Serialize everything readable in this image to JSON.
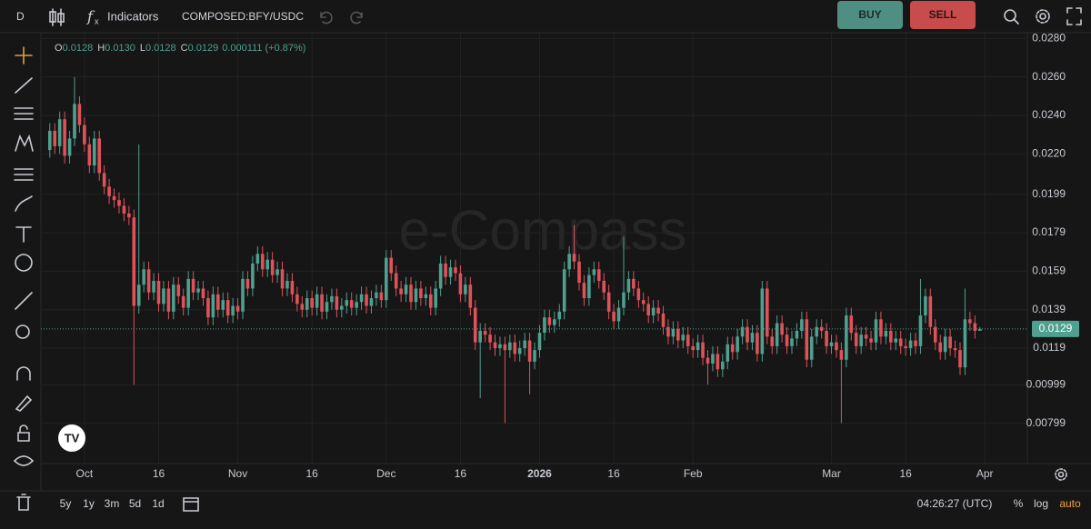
{
  "toolbar": {
    "interval": "D",
    "indicators": "Indicators",
    "symbol": "COMPOSED:BFY/USDC",
    "buy": "BUY",
    "sell": "SELL"
  },
  "watermark": "e-Compass",
  "footer": {
    "ranges": [
      "5y",
      "1y",
      "3m",
      "5d",
      "1d"
    ],
    "time": "04:26:27 (UTC)",
    "percent": "%",
    "log": "log",
    "auto": "auto"
  },
  "chart_data": {
    "type": "candlestick",
    "ohlc_header": [
      {
        "key": "O",
        "value": "0.0128"
      },
      {
        "key": "H",
        "value": "0.0130"
      },
      {
        "key": "L",
        "value": "0.0128"
      },
      {
        "key": "C",
        "value": "0.0129"
      }
    ],
    "change": "0.000111 (+0.87%)",
    "up_color": "#4ea08f",
    "down_color": "#e0525a",
    "last_price": 0.0129,
    "xlim": [
      -1.8,
      197.6
    ],
    "xticks": [
      {
        "value": 7,
        "label": "Oct"
      },
      {
        "value": 22,
        "label": "16"
      },
      {
        "value": 38,
        "label": "Nov"
      },
      {
        "value": 53,
        "label": "16"
      },
      {
        "value": 68,
        "label": "Dec"
      },
      {
        "value": 83,
        "label": "16"
      },
      {
        "value": 99,
        "label": "2026"
      },
      {
        "value": 114,
        "label": "16"
      },
      {
        "value": 130,
        "label": "Feb"
      },
      {
        "value": 158,
        "label": "Mar"
      },
      {
        "value": 173,
        "label": "16"
      },
      {
        "value": 189,
        "label": "Apr"
      }
    ],
    "ylim": [
      0.0059,
      0.0283
    ],
    "yticks": [
      {
        "value": 0.028,
        "label": "0.0280"
      },
      {
        "value": 0.026,
        "label": "0.0260"
      },
      {
        "value": 0.024,
        "label": "0.0240"
      },
      {
        "value": 0.022,
        "label": "0.0220"
      },
      0.0199,
      0.0179,
      0.0159,
      0.0139,
      0.0119,
      0.00999,
      0.00799
    ],
    "grid": true,
    "open": [
      0.0222,
      0.0232,
      0.0224,
      0.0238,
      0.0219,
      0.0228,
      0.0246,
      0.0235,
      0.0225,
      0.0214,
      0.0228,
      0.021,
      0.0203,
      0.0198,
      0.0196,
      0.0193,
      0.0189,
      0.0187,
      0.0141,
      0.0152,
      0.016,
      0.0148,
      0.0154,
      0.0142,
      0.015,
      0.0138,
      0.0152,
      0.0146,
      0.014,
      0.0155,
      0.0148,
      0.015,
      0.0145,
      0.0135,
      0.0147,
      0.0139,
      0.0144,
      0.0136,
      0.0141,
      0.0138,
      0.0155,
      0.015,
      0.0163,
      0.0168,
      0.016,
      0.0165,
      0.0157,
      0.016,
      0.015,
      0.0154,
      0.0147,
      0.0142,
      0.0139,
      0.0145,
      0.014,
      0.0147,
      0.0138,
      0.0143,
      0.0146,
      0.0139,
      0.0141,
      0.0144,
      0.014,
      0.0143,
      0.0147,
      0.0141,
      0.0145,
      0.0148,
      0.0144,
      0.0166,
      0.0158,
      0.015,
      0.0147,
      0.0152,
      0.0143,
      0.015,
      0.0145,
      0.0147,
      0.014,
      0.015,
      0.0163,
      0.0156,
      0.0161,
      0.0158,
      0.0147,
      0.0152,
      0.014,
      0.0122,
      0.0128,
      0.0126,
      0.0122,
      0.0119,
      0.0121,
      0.0118,
      0.0122,
      0.0116,
      0.0119,
      0.0123,
      0.0112,
      0.0118,
      0.0127,
      0.0135,
      0.0131,
      0.0134,
      0.0138,
      0.016,
      0.0168,
      0.0164,
      0.0153,
      0.0145,
      0.0157,
      0.016,
      0.0154,
      0.0148,
      0.0138,
      0.0133,
      0.014,
      0.0148,
      0.0155,
      0.015,
      0.0144,
      0.0142,
      0.0136,
      0.014,
      0.0137,
      0.013,
      0.0125,
      0.0129,
      0.0123,
      0.0126,
      0.012,
      0.0118,
      0.0122,
      0.0114,
      0.0111,
      0.0116,
      0.0108,
      0.0112,
      0.0121,
      0.0117,
      0.0125,
      0.013,
      0.0122,
      0.0127,
      0.0116,
      0.015,
      0.0125,
      0.012,
      0.0132,
      0.0126,
      0.012,
      0.0124,
      0.0128,
      0.0134,
      0.0113,
      0.0125,
      0.013,
      0.0128,
      0.012,
      0.0122,
      0.0118,
      0.0113,
      0.0136,
      0.0127,
      0.012,
      0.0126,
      0.0124,
      0.0122,
      0.0134,
      0.0125,
      0.0128,
      0.0122,
      0.0124,
      0.012,
      0.0119,
      0.0123,
      0.012,
      0.0136,
      0.0146,
      0.013,
      0.0122,
      0.0117,
      0.0125,
      0.0119,
      0.0118,
      0.0109,
      0.0134,
      0.0132,
      0.0128
    ],
    "high": [
      0.0236,
      0.0236,
      0.0242,
      0.0242,
      0.0232,
      0.026,
      0.025,
      0.0239,
      0.0229,
      0.0232,
      0.0232,
      0.0214,
      0.0207,
      0.0202,
      0.02,
      0.0197,
      0.0193,
      0.0191,
      0.0225,
      0.0164,
      0.0164,
      0.0158,
      0.0158,
      0.0154,
      0.0154,
      0.0156,
      0.0156,
      0.015,
      0.0159,
      0.0159,
      0.0154,
      0.0154,
      0.0149,
      0.0151,
      0.0151,
      0.0148,
      0.0148,
      0.0145,
      0.0145,
      0.0159,
      0.0159,
      0.0167,
      0.0172,
      0.0172,
      0.0169,
      0.0169,
      0.0164,
      0.0164,
      0.0158,
      0.0158,
      0.0151,
      0.0146,
      0.0149,
      0.0149,
      0.0151,
      0.0151,
      0.0147,
      0.015,
      0.015,
      0.0145,
      0.0148,
      0.0148,
      0.0147,
      0.0151,
      0.0151,
      0.0149,
      0.0152,
      0.0152,
      0.017,
      0.017,
      0.0162,
      0.0154,
      0.0156,
      0.0156,
      0.0154,
      0.0154,
      0.0151,
      0.0151,
      0.0154,
      0.0167,
      0.0167,
      0.0165,
      0.0165,
      0.0162,
      0.0156,
      0.0156,
      0.0144,
      0.0132,
      0.0132,
      0.013,
      0.0126,
      0.0125,
      0.0125,
      0.0126,
      0.0126,
      0.0123,
      0.0127,
      0.0127,
      0.0122,
      0.0131,
      0.0139,
      0.0139,
      0.0138,
      0.0142,
      0.0164,
      0.0172,
      0.0183,
      0.0168,
      0.0157,
      0.0161,
      0.0164,
      0.0164,
      0.0158,
      0.0152,
      0.0142,
      0.0144,
      0.0177,
      0.0159,
      0.0159,
      0.0154,
      0.0148,
      0.0146,
      0.0144,
      0.0144,
      0.0141,
      0.0134,
      0.0133,
      0.0133,
      0.013,
      0.013,
      0.0124,
      0.0126,
      0.0126,
      0.0118,
      0.012,
      0.012,
      0.0116,
      0.0125,
      0.0125,
      0.0129,
      0.0134,
      0.0134,
      0.0131,
      0.0131,
      0.0154,
      0.0154,
      0.0129,
      0.0136,
      0.0136,
      0.013,
      0.0128,
      0.0132,
      0.0138,
      0.0138,
      0.0129,
      0.0134,
      0.0134,
      0.0132,
      0.0126,
      0.0126,
      0.0122,
      0.014,
      0.014,
      0.0131,
      0.013,
      0.013,
      0.0128,
      0.0138,
      0.0138,
      0.0132,
      0.0132,
      0.0128,
      0.0128,
      0.0124,
      0.0127,
      0.0127,
      0.0155,
      0.015,
      0.015,
      0.0134,
      0.0126,
      0.0129,
      0.0129,
      0.0123,
      0.0122,
      0.015,
      0.0138,
      0.0136,
      0.013
    ],
    "low": [
      0.0218,
      0.022,
      0.022,
      0.0215,
      0.0215,
      0.0224,
      0.0231,
      0.0221,
      0.021,
      0.021,
      0.0206,
      0.0199,
      0.0194,
      0.0192,
      0.0189,
      0.0185,
      0.0183,
      0.01,
      0.0137,
      0.0148,
      0.0144,
      0.0144,
      0.0138,
      0.0138,
      0.0134,
      0.0134,
      0.0142,
      0.0136,
      0.0136,
      0.0144,
      0.0144,
      0.0141,
      0.0131,
      0.0131,
      0.0135,
      0.0135,
      0.0132,
      0.0132,
      0.0134,
      0.0134,
      0.0146,
      0.0146,
      0.0159,
      0.0156,
      0.0156,
      0.0153,
      0.0153,
      0.0146,
      0.0146,
      0.0143,
      0.0138,
      0.0135,
      0.0135,
      0.0136,
      0.0136,
      0.0134,
      0.0134,
      0.0139,
      0.0135,
      0.0135,
      0.0137,
      0.0136,
      0.0136,
      0.0139,
      0.0137,
      0.0137,
      0.0141,
      0.014,
      0.014,
      0.0154,
      0.0146,
      0.0143,
      0.0143,
      0.0139,
      0.0139,
      0.0141,
      0.0141,
      0.0136,
      0.0136,
      0.0146,
      0.0152,
      0.0152,
      0.0154,
      0.0143,
      0.0143,
      0.0136,
      0.0118,
      0.0093,
      0.0122,
      0.0118,
      0.0115,
      0.0115,
      0.008,
      0.0114,
      0.0112,
      0.0112,
      0.0115,
      0.0095,
      0.0108,
      0.0114,
      0.0123,
      0.0127,
      0.0127,
      0.013,
      0.0134,
      0.0156,
      0.016,
      0.0149,
      0.0141,
      0.0141,
      0.0153,
      0.015,
      0.0144,
      0.0134,
      0.0129,
      0.0129,
      0.0136,
      0.0144,
      0.0146,
      0.014,
      0.0138,
      0.0132,
      0.0132,
      0.0133,
      0.0126,
      0.0121,
      0.0121,
      0.0119,
      0.0119,
      0.0116,
      0.0114,
      0.0114,
      0.011,
      0.01,
      0.0107,
      0.0104,
      0.0104,
      0.0108,
      0.0113,
      0.0113,
      0.0121,
      0.0118,
      0.0118,
      0.0112,
      0.0112,
      0.0121,
      0.0116,
      0.0116,
      0.0122,
      0.0116,
      0.0116,
      0.012,
      0.0124,
      0.0109,
      0.0109,
      0.0121,
      0.0124,
      0.0116,
      0.0116,
      0.0114,
      0.008,
      0.0109,
      0.0123,
      0.0116,
      0.0116,
      0.012,
      0.0118,
      0.0118,
      0.0121,
      0.0121,
      0.0118,
      0.0118,
      0.0116,
      0.0115,
      0.0115,
      0.0116,
      0.0116,
      0.0132,
      0.0126,
      0.0118,
      0.0113,
      0.0113,
      0.0115,
      0.0114,
      0.0105,
      0.0105,
      0.0128,
      0.0124,
      0.0128
    ],
    "close": [
      0.0232,
      0.0224,
      0.0238,
      0.0219,
      0.0228,
      0.0246,
      0.0235,
      0.0225,
      0.0214,
      0.0228,
      0.021,
      0.0203,
      0.0198,
      0.0196,
      0.0193,
      0.0189,
      0.0187,
      0.0141,
      0.0152,
      0.016,
      0.0148,
      0.0154,
      0.0142,
      0.015,
      0.0138,
      0.0152,
      0.0146,
      0.014,
      0.0155,
      0.0148,
      0.015,
      0.0145,
      0.0135,
      0.0147,
      0.0139,
      0.0144,
      0.0136,
      0.0141,
      0.0138,
      0.0155,
      0.015,
      0.0163,
      0.0168,
      0.016,
      0.0165,
      0.0157,
      0.016,
      0.015,
      0.0154,
      0.0147,
      0.0142,
      0.0139,
      0.0145,
      0.014,
      0.0147,
      0.0138,
      0.0143,
      0.0146,
      0.0139,
      0.0141,
      0.0144,
      0.014,
      0.0143,
      0.0147,
      0.0141,
      0.0145,
      0.0148,
      0.0144,
      0.0166,
      0.0158,
      0.015,
      0.0147,
      0.0152,
      0.0143,
      0.015,
      0.0145,
      0.0147,
      0.014,
      0.015,
      0.0163,
      0.0156,
      0.0161,
      0.0158,
      0.0147,
      0.0152,
      0.014,
      0.0122,
      0.0128,
      0.0126,
      0.0122,
      0.0119,
      0.0121,
      0.0118,
      0.0122,
      0.0116,
      0.0119,
      0.0123,
      0.0112,
      0.0118,
      0.0127,
      0.0135,
      0.0131,
      0.0134,
      0.0138,
      0.016,
      0.0168,
      0.0164,
      0.0153,
      0.0145,
      0.0157,
      0.016,
      0.0154,
      0.0148,
      0.0138,
      0.0133,
      0.014,
      0.0148,
      0.0155,
      0.015,
      0.0144,
      0.0142,
      0.0136,
      0.014,
      0.0137,
      0.013,
      0.0125,
      0.0129,
      0.0123,
      0.0126,
      0.012,
      0.0118,
      0.0122,
      0.0114,
      0.0111,
      0.0116,
      0.0108,
      0.0112,
      0.0121,
      0.0117,
      0.0125,
      0.013,
      0.0122,
      0.0127,
      0.0116,
      0.015,
      0.0125,
      0.012,
      0.0132,
      0.0126,
      0.012,
      0.0124,
      0.0128,
      0.0134,
      0.0113,
      0.0125,
      0.013,
      0.0128,
      0.012,
      0.0122,
      0.0118,
      0.0113,
      0.0136,
      0.0127,
      0.012,
      0.0126,
      0.0124,
      0.0122,
      0.0134,
      0.0125,
      0.0128,
      0.0122,
      0.0124,
      0.012,
      0.0119,
      0.0123,
      0.012,
      0.0136,
      0.0146,
      0.013,
      0.0122,
      0.0117,
      0.0125,
      0.0119,
      0.0118,
      0.0109,
      0.0134,
      0.0132,
      0.0128,
      0.0129
    ]
  }
}
